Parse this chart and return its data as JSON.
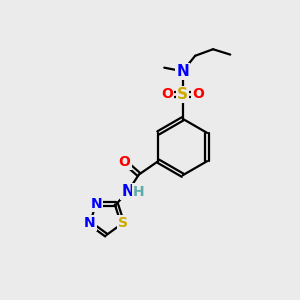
{
  "bg_color": "#ebebeb",
  "atom_colors": {
    "C": "#000000",
    "H": "#5faaaa",
    "N": "#0000ff",
    "O": "#ff0000",
    "S": "#ccaa00"
  },
  "bond_color": "#000000",
  "bond_width": 1.6,
  "font_size_atom": 10.5,
  "font_size_h": 10
}
